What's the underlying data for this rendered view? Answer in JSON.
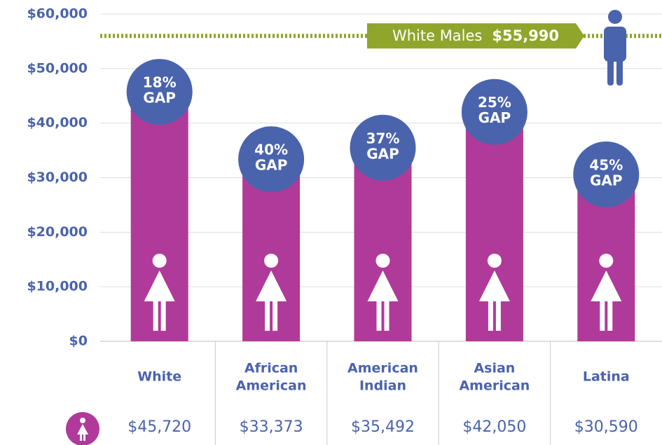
{
  "chart_data": {
    "type": "bar",
    "categories": [
      "White",
      "African American",
      "American Indian",
      "Asian American",
      "Latina"
    ],
    "values": [
      45720,
      33373,
      35492,
      42050,
      30590
    ],
    "value_labels": [
      "$45,720",
      "$33,373",
      "$35,492",
      "$42,050",
      "$30,590"
    ],
    "gap_labels": [
      "18%",
      "40%",
      "37%",
      "25%",
      "45%"
    ],
    "gap_word": "GAP",
    "color": "#b03a9a",
    "gap_color": "#4a63ad",
    "reference": {
      "label": "White Males",
      "value": 55990,
      "value_label": "$55,990",
      "color": "#8fa52b"
    },
    "ylim": [
      0,
      60000
    ],
    "yticks": [
      {
        "value": 0,
        "label": "$0"
      },
      {
        "value": 10000,
        "label": "$10,000"
      },
      {
        "value": 20000,
        "label": "$20,000"
      },
      {
        "value": 30000,
        "label": "$30,000"
      },
      {
        "value": 40000,
        "label": "$40,000"
      },
      {
        "value": 50000,
        "label": "$50,000"
      },
      {
        "value": 60000,
        "label": "$60,000"
      }
    ],
    "grid": true
  }
}
